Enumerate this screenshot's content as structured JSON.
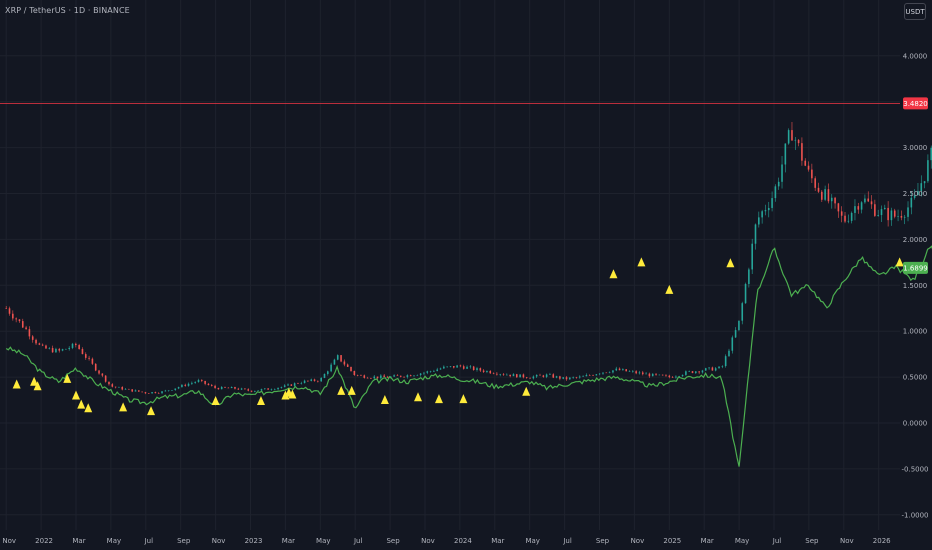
{
  "header": {
    "symbol_title": "XRP / TetherUS · 1D · BINANCE",
    "currency_button": "USDT"
  },
  "colors": {
    "background": "#131722",
    "grid": "#1e222d",
    "candle_up": "#26a69a",
    "candle_down": "#ef5350",
    "indicator_line": "#4caf50",
    "signal_marker": "#ffeb3b",
    "price_line": "#f23645",
    "price_badge": "#f23645",
    "indicator_badge": "#4caf50"
  },
  "chart_data": {
    "type": "line",
    "title": "XRP / TetherUS · 1D · BINANCE",
    "x_axis_ticks": [
      "Nov",
      "2022",
      "Mar",
      "May",
      "Jul",
      "Sep",
      "Nov",
      "2023",
      "Mar",
      "May",
      "Jul",
      "Sep",
      "Nov",
      "2024",
      "Mar",
      "May",
      "Jul",
      "Sep",
      "Nov",
      "2025",
      "Mar",
      "May",
      "Jul",
      "Sep",
      "Nov",
      "2026"
    ],
    "y_axis_ticks": [
      "4.0000",
      "3.5000",
      "3.0000",
      "2.5000",
      "2.0000",
      "1.5000",
      "1.0000",
      "0.5000",
      "0.0000",
      "-0.5000",
      "-1.0000"
    ],
    "ylim": [
      -1.0,
      4.0
    ],
    "grid": true,
    "last_price_label": "3.4820",
    "indicator_value_label": "1.6899",
    "series": [
      {
        "name": "XRP/USDT close",
        "style": "candles",
        "x_month_index": [
          0,
          1,
          2,
          3,
          4,
          5,
          6,
          7,
          8,
          9,
          10,
          11,
          12,
          13,
          14,
          15,
          16,
          17,
          18,
          19,
          20,
          21,
          22,
          23,
          24,
          25,
          26,
          27,
          28,
          29,
          30,
          31,
          32,
          33,
          34,
          35,
          36,
          37,
          38,
          39,
          40,
          41,
          42,
          43,
          44,
          45,
          46,
          47,
          48,
          49,
          50,
          51,
          52,
          53,
          54,
          55
        ],
        "values": [
          1.25,
          1.05,
          0.82,
          0.78,
          0.85,
          0.62,
          0.4,
          0.36,
          0.33,
          0.34,
          0.4,
          0.46,
          0.38,
          0.38,
          0.35,
          0.37,
          0.4,
          0.45,
          0.47,
          0.72,
          0.52,
          0.5,
          0.5,
          0.52,
          0.55,
          0.6,
          0.62,
          0.58,
          0.55,
          0.52,
          0.5,
          0.52,
          0.48,
          0.5,
          0.55,
          0.58,
          0.55,
          0.52,
          0.5,
          0.55,
          0.58,
          0.6,
          1.1,
          2.2,
          2.5,
          3.2,
          2.7,
          2.45,
          2.2,
          2.45,
          2.3,
          2.25,
          2.4,
          2.9,
          3.35,
          3.48
        ]
      },
      {
        "name": "Indicator",
        "style": "line",
        "x_month_index": [
          0,
          1,
          2,
          3,
          4,
          5,
          6,
          7,
          8,
          9,
          10,
          11,
          12,
          13,
          14,
          15,
          16,
          17,
          18,
          19,
          20,
          21,
          22,
          23,
          24,
          25,
          26,
          27,
          28,
          29,
          30,
          31,
          32,
          33,
          34,
          35,
          36,
          37,
          38,
          39,
          40,
          41,
          42,
          43,
          44,
          45,
          46,
          47,
          48,
          49,
          50,
          51,
          52,
          53,
          54,
          55
        ],
        "values": [
          0.82,
          0.75,
          0.55,
          0.45,
          0.6,
          0.45,
          0.35,
          0.25,
          0.22,
          0.28,
          0.3,
          0.35,
          0.18,
          0.32,
          0.3,
          0.34,
          0.38,
          0.4,
          0.32,
          0.6,
          0.15,
          0.45,
          0.48,
          0.45,
          0.5,
          0.52,
          0.48,
          0.45,
          0.4,
          0.42,
          0.45,
          0.38,
          0.42,
          0.45,
          0.48,
          0.5,
          0.45,
          0.4,
          0.45,
          0.5,
          0.52,
          0.5,
          -0.5,
          1.4,
          1.9,
          1.4,
          1.5,
          1.25,
          1.55,
          1.8,
          1.6,
          1.7,
          1.55,
          1.95,
          1.15,
          1.7
        ]
      },
      {
        "name": "Signals",
        "style": "markers",
        "x_month_index": [
          0.6,
          1.6,
          1.8,
          3.5,
          4.0,
          4.3,
          4.7,
          6.7,
          8.3,
          12.0,
          14.6,
          16.0,
          16.2,
          16.4,
          19.2,
          19.8,
          21.7,
          23.6,
          24.8,
          26.2,
          29.8,
          34.8,
          36.4,
          38.0,
          41.5,
          51.2
        ],
        "values": [
          0.42,
          0.45,
          0.4,
          0.48,
          0.3,
          0.2,
          0.16,
          0.17,
          0.13,
          0.24,
          0.24,
          0.3,
          0.33,
          0.31,
          0.35,
          0.35,
          0.25,
          0.28,
          0.26,
          0.26,
          0.34,
          1.62,
          1.75,
          1.45,
          1.74,
          1.75
        ]
      }
    ]
  }
}
